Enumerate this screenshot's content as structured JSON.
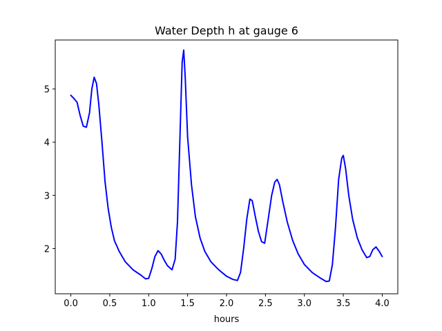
{
  "chart_data": {
    "type": "line",
    "title": "Water Depth h at gauge 6",
    "xlabel": "hours",
    "ylabel": "",
    "xlim": [
      -0.2,
      4.2
    ],
    "ylim": [
      1.15,
      5.92
    ],
    "xticks": [
      0.0,
      0.5,
      1.0,
      1.5,
      2.0,
      2.5,
      3.0,
      3.5,
      4.0
    ],
    "xtick_labels": [
      "0.0",
      "0.5",
      "1.0",
      "1.5",
      "2.0",
      "2.5",
      "3.0",
      "3.5",
      "4.0"
    ],
    "yticks": [
      2,
      3,
      4,
      5
    ],
    "ytick_labels": [
      "2",
      "3",
      "4",
      "5"
    ],
    "grid": false,
    "series": [
      {
        "color": "#0000ff",
        "points": [
          [
            0.0,
            4.88
          ],
          [
            0.04,
            4.82
          ],
          [
            0.08,
            4.75
          ],
          [
            0.12,
            4.5
          ],
          [
            0.16,
            4.3
          ],
          [
            0.2,
            4.28
          ],
          [
            0.24,
            4.55
          ],
          [
            0.27,
            5.0
          ],
          [
            0.3,
            5.22
          ],
          [
            0.33,
            5.1
          ],
          [
            0.36,
            4.7
          ],
          [
            0.4,
            4.0
          ],
          [
            0.44,
            3.25
          ],
          [
            0.48,
            2.75
          ],
          [
            0.52,
            2.4
          ],
          [
            0.56,
            2.15
          ],
          [
            0.62,
            1.95
          ],
          [
            0.7,
            1.75
          ],
          [
            0.8,
            1.6
          ],
          [
            0.9,
            1.5
          ],
          [
            0.96,
            1.43
          ],
          [
            1.0,
            1.44
          ],
          [
            1.04,
            1.62
          ],
          [
            1.08,
            1.85
          ],
          [
            1.12,
            1.96
          ],
          [
            1.16,
            1.9
          ],
          [
            1.2,
            1.78
          ],
          [
            1.24,
            1.68
          ],
          [
            1.3,
            1.6
          ],
          [
            1.34,
            1.8
          ],
          [
            1.37,
            2.5
          ],
          [
            1.4,
            4.0
          ],
          [
            1.43,
            5.5
          ],
          [
            1.45,
            5.73
          ],
          [
            1.47,
            5.2
          ],
          [
            1.5,
            4.1
          ],
          [
            1.55,
            3.2
          ],
          [
            1.6,
            2.6
          ],
          [
            1.66,
            2.2
          ],
          [
            1.72,
            1.95
          ],
          [
            1.8,
            1.75
          ],
          [
            1.9,
            1.6
          ],
          [
            2.0,
            1.48
          ],
          [
            2.08,
            1.42
          ],
          [
            2.14,
            1.4
          ],
          [
            2.18,
            1.55
          ],
          [
            2.22,
            2.0
          ],
          [
            2.26,
            2.55
          ],
          [
            2.3,
            2.93
          ],
          [
            2.33,
            2.9
          ],
          [
            2.37,
            2.6
          ],
          [
            2.41,
            2.32
          ],
          [
            2.45,
            2.13
          ],
          [
            2.49,
            2.1
          ],
          [
            2.53,
            2.5
          ],
          [
            2.58,
            3.0
          ],
          [
            2.62,
            3.25
          ],
          [
            2.65,
            3.3
          ],
          [
            2.68,
            3.2
          ],
          [
            2.72,
            2.9
          ],
          [
            2.78,
            2.5
          ],
          [
            2.85,
            2.15
          ],
          [
            2.92,
            1.9
          ],
          [
            3.0,
            1.7
          ],
          [
            3.1,
            1.55
          ],
          [
            3.2,
            1.45
          ],
          [
            3.28,
            1.38
          ],
          [
            3.32,
            1.39
          ],
          [
            3.36,
            1.7
          ],
          [
            3.4,
            2.4
          ],
          [
            3.44,
            3.3
          ],
          [
            3.48,
            3.7
          ],
          [
            3.5,
            3.75
          ],
          [
            3.53,
            3.5
          ],
          [
            3.57,
            3.0
          ],
          [
            3.62,
            2.55
          ],
          [
            3.68,
            2.2
          ],
          [
            3.74,
            1.98
          ],
          [
            3.8,
            1.83
          ],
          [
            3.84,
            1.85
          ],
          [
            3.88,
            1.98
          ],
          [
            3.92,
            2.03
          ],
          [
            3.96,
            1.95
          ],
          [
            4.0,
            1.85
          ]
        ]
      }
    ]
  }
}
